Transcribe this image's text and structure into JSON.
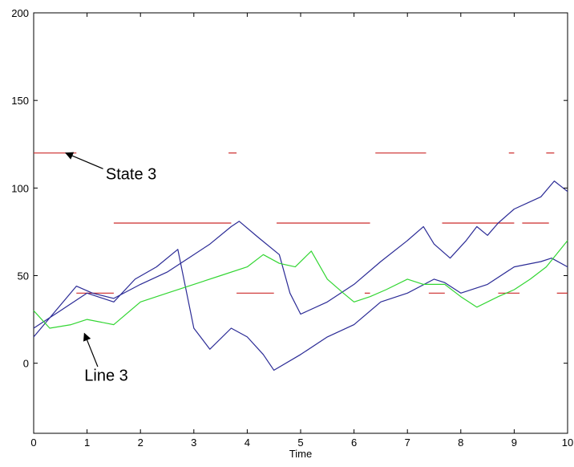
{
  "chart_data": {
    "type": "line",
    "title": "",
    "xlabel": "Time",
    "ylabel": "",
    "xlim": [
      0,
      10
    ],
    "ylim": [
      -40,
      200
    ],
    "xticks": [
      0,
      1,
      2,
      3,
      4,
      5,
      6,
      7,
      8,
      9,
      10
    ],
    "yticks": [
      0,
      50,
      100,
      150,
      200
    ],
    "grid": false,
    "series_colors": {
      "blue": "#2b2b96",
      "green": "#33d633",
      "red": "#cc2a2a"
    },
    "series": [
      {
        "color": "#2b2b96",
        "x": [
          0,
          0.8,
          1.1,
          1.5,
          2.0,
          2.5,
          2.9,
          3.3,
          3.7,
          3.85,
          4.2,
          4.6,
          4.8,
          5.0,
          5.5,
          6.0,
          6.5,
          7.0,
          7.3,
          7.5,
          7.8,
          8.1,
          8.3,
          8.5,
          8.7,
          9.0,
          9.5,
          9.75,
          10.0
        ],
        "y": [
          15,
          44,
          40,
          37,
          45,
          52,
          60,
          68,
          78,
          81,
          72,
          62,
          40,
          28,
          35,
          45,
          58,
          70,
          78,
          68,
          60,
          70,
          78,
          73,
          80,
          88,
          95,
          104,
          98
        ]
      },
      {
        "color": "#2b2b96",
        "x": [
          0,
          0.5,
          1.0,
          1.5,
          1.9,
          2.3,
          2.7,
          3.0,
          3.3,
          3.7,
          4.0,
          4.3,
          4.5,
          5.0,
          5.5,
          6.0,
          6.5,
          7.0,
          7.5,
          7.7,
          8.0,
          8.5,
          9.0,
          9.5,
          9.7,
          10.0
        ],
        "y": [
          20,
          30,
          40,
          35,
          48,
          55,
          65,
          20,
          8,
          20,
          15,
          5,
          -4,
          5,
          15,
          22,
          35,
          40,
          48,
          46,
          40,
          45,
          55,
          58,
          60,
          55
        ]
      },
      {
        "color": "#33d633",
        "x": [
          0,
          0.3,
          0.7,
          1.0,
          1.5,
          2.0,
          2.5,
          3.0,
          3.5,
          4.0,
          4.3,
          4.6,
          4.9,
          5.2,
          5.5,
          5.8,
          6.0,
          6.3,
          6.6,
          7.0,
          7.3,
          7.7,
          8.0,
          8.3,
          8.7,
          9.0,
          9.3,
          9.6,
          10.0
        ],
        "y": [
          30,
          20,
          22,
          25,
          22,
          35,
          40,
          45,
          50,
          55,
          62,
          57,
          55,
          64,
          48,
          40,
          35,
          38,
          42,
          48,
          45,
          45,
          38,
          32,
          38,
          42,
          48,
          55,
          70
        ]
      }
    ],
    "state_segments": [
      {
        "level": 120,
        "ranges": [
          [
            0,
            0.8
          ],
          [
            3.65,
            3.8
          ],
          [
            6.4,
            7.35
          ],
          [
            8.9,
            9.0
          ],
          [
            9.6,
            9.75
          ]
        ]
      },
      {
        "level": 80,
        "ranges": [
          [
            1.5,
            3.7
          ],
          [
            4.55,
            6.3
          ],
          [
            7.65,
            9.0
          ],
          [
            9.15,
            9.65
          ]
        ]
      },
      {
        "level": 40,
        "ranges": [
          [
            0.8,
            1.5
          ],
          [
            3.8,
            4.5
          ],
          [
            6.2,
            6.3
          ],
          [
            7.4,
            7.7
          ],
          [
            8.7,
            9.1
          ],
          [
            9.8,
            10.0
          ]
        ]
      }
    ],
    "annotations": [
      {
        "text": "State 3",
        "target_x": 0.6,
        "target_y": 120
      },
      {
        "text": "Line 3",
        "target_x": 0.95,
        "target_y": 17
      }
    ]
  }
}
